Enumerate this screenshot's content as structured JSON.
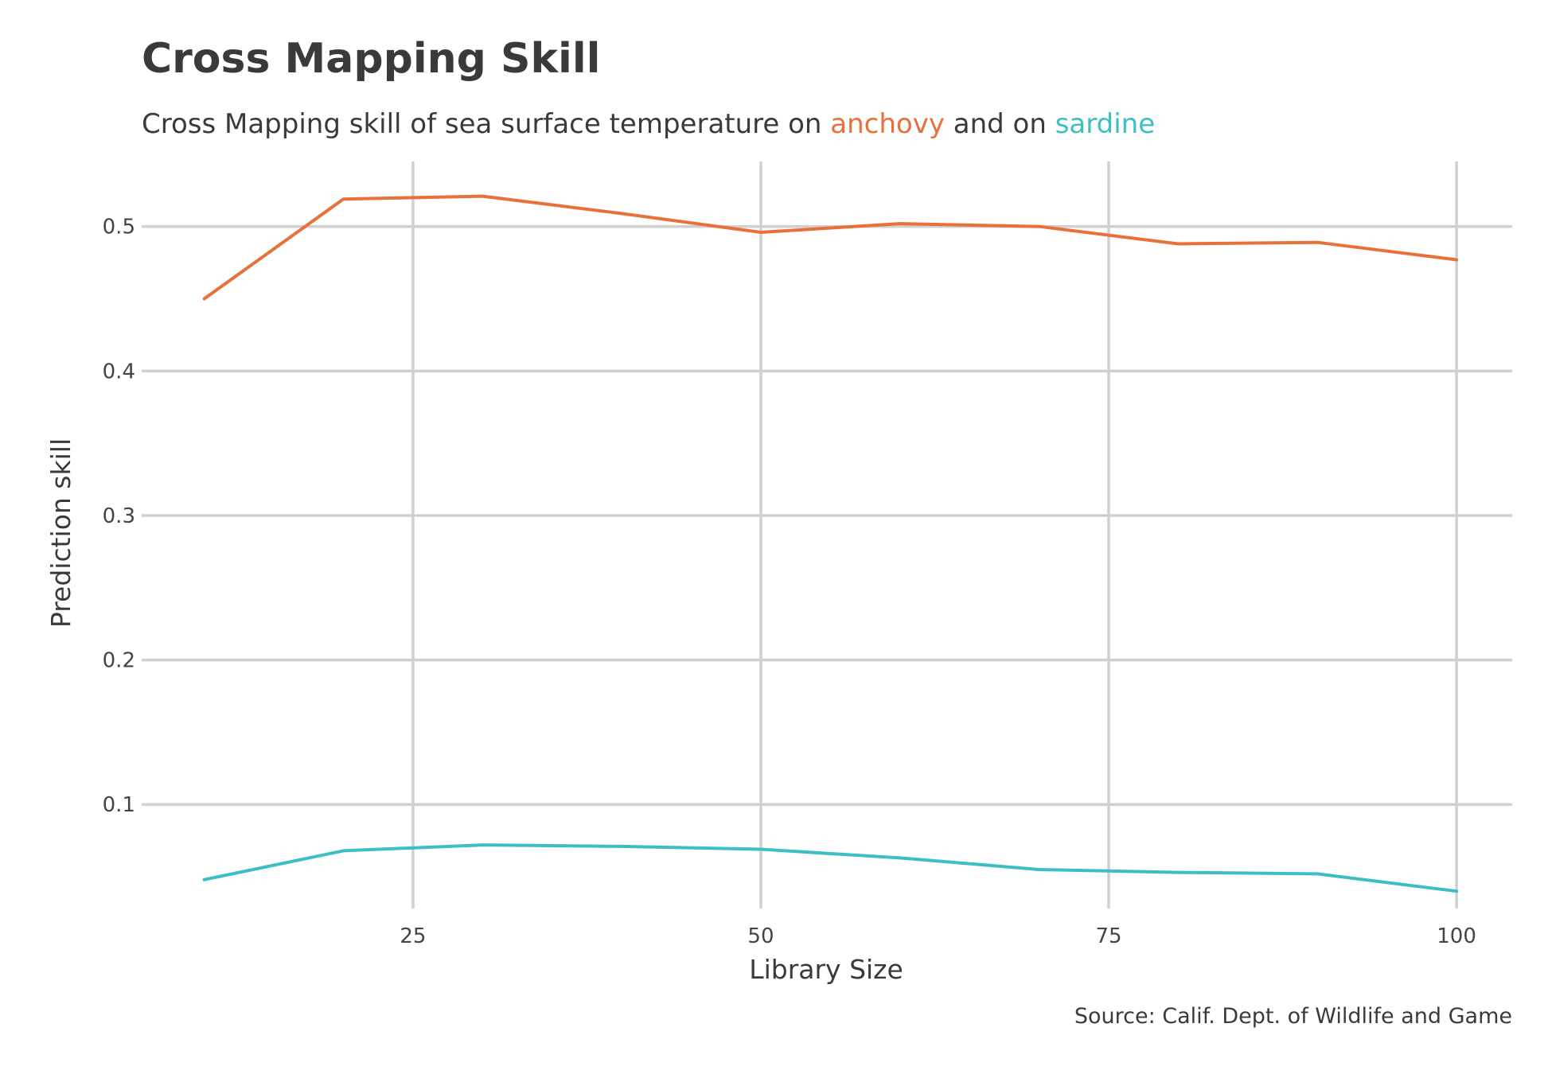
{
  "chart_data": {
    "type": "line",
    "title": "Cross Mapping Skill",
    "subtitle": {
      "prefix": "Cross Mapping skill of sea surface temperature on ",
      "highlight_1": "anchovy",
      "middle": " and on ",
      "highlight_2": "sardine"
    },
    "caption": "Source: Calif. Dept. of Wildlife and Game",
    "xlabel": "Library Size",
    "ylabel": "Prediction skill",
    "xlim": [
      5.5,
      104
    ],
    "ylim": [
      0.028,
      0.545
    ],
    "x_ticks": [
      25,
      50,
      75,
      100
    ],
    "x_tick_labels": [
      "25",
      "50",
      "75",
      "100"
    ],
    "y_ticks": [
      0.1,
      0.2,
      0.3,
      0.4,
      0.5
    ],
    "y_tick_labels": [
      "0.1",
      "0.2",
      "0.3",
      "0.4",
      "0.5"
    ],
    "grid": true,
    "legend": "none (colors in subtitle)",
    "x": [
      10,
      20,
      30,
      40,
      50,
      60,
      70,
      80,
      90,
      100
    ],
    "series": [
      {
        "key": "anchovy",
        "color": "#E8703A",
        "values": [
          0.45,
          0.519,
          0.521,
          0.509,
          0.496,
          0.502,
          0.5,
          0.488,
          0.489,
          0.477
        ]
      },
      {
        "key": "sardine",
        "color": "#3BBFC4",
        "values": [
          0.048,
          0.068,
          0.072,
          0.071,
          0.069,
          0.063,
          0.055,
          0.053,
          0.052,
          0.04
        ]
      }
    ]
  }
}
